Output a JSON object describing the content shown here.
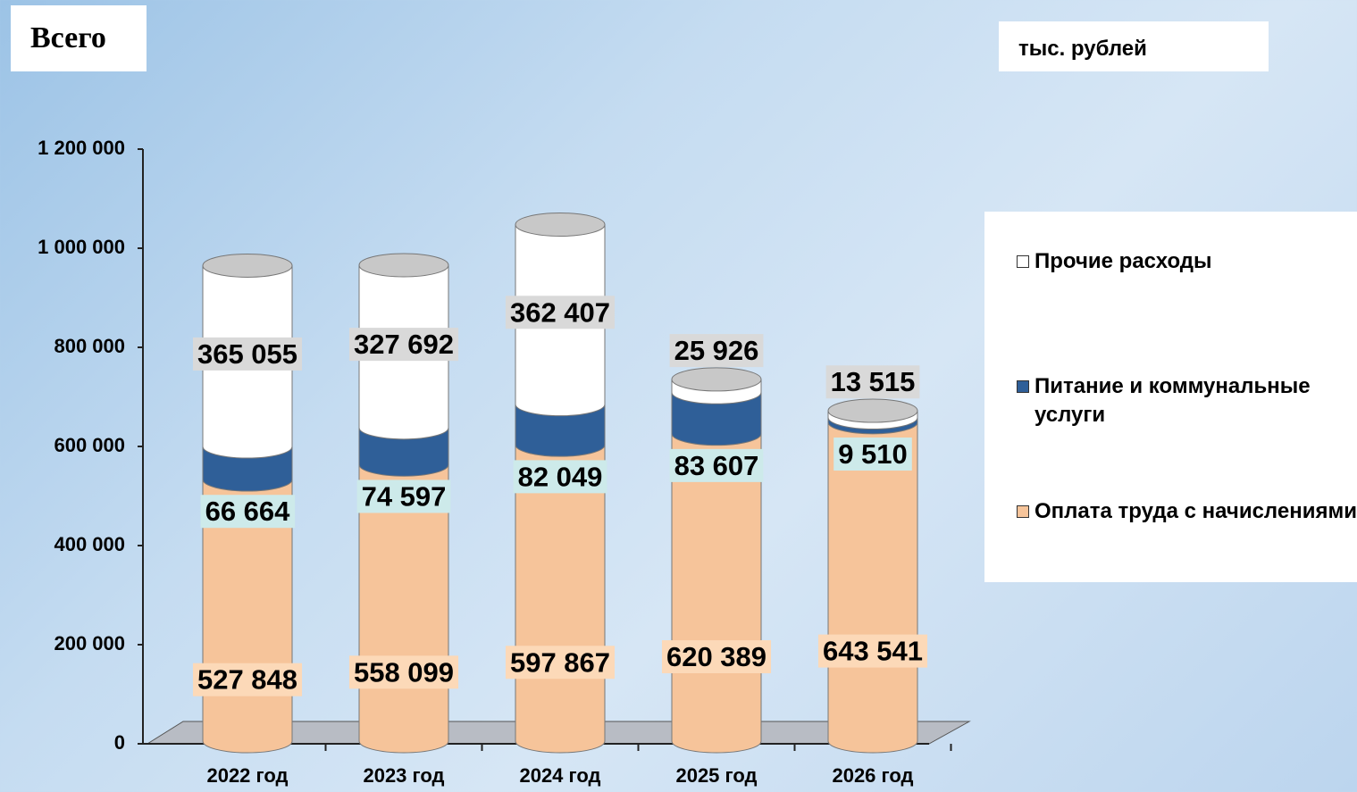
{
  "chart_data": {
    "type": "stacked-cylinder",
    "title": "Всего",
    "unit": "тыс. рублей",
    "categories": [
      "2022 год",
      "2023 год",
      "2024 год",
      "2025 год",
      "2026 год"
    ],
    "series": [
      {
        "name": "Оплата труда с начислениями",
        "color": "#f6c49a",
        "label_bg": "#fcd9b8",
        "values": [
          527848,
          558099,
          597867,
          620389,
          643541
        ],
        "value_labels": [
          "527 848",
          "558 099",
          "597 867",
          "620 389",
          "643 541"
        ]
      },
      {
        "name": "Питание и коммунальные услуги",
        "color": "#2f5f98",
        "label_bg": "#cdeaea",
        "values": [
          66664,
          74597,
          82049,
          83607,
          9510
        ],
        "value_labels": [
          "66 664",
          "74 597",
          "82 049",
          "83 607",
          "9 510"
        ]
      },
      {
        "name": "Прочие расходы",
        "color": "#ffffff",
        "label_bg": "#d9d9d9",
        "values": [
          365055,
          327692,
          362407,
          25926,
          13515
        ],
        "value_labels": [
          "365 055",
          "327 692",
          "362 407",
          "25 926",
          "13 515"
        ]
      }
    ],
    "ylim": [
      0,
      1200000
    ],
    "yticks": [
      0,
      {
        "value": 200000,
        "label": "200 000"
      },
      {
        "value": 400000,
        "label": "400 000"
      },
      {
        "value": 600000,
        "label": "600 000"
      },
      {
        "value": 800000,
        "label": "800 000"
      },
      {
        "value": 1000000,
        "label": "1 000 000"
      },
      {
        "value": 1200000,
        "label": "1 200 000"
      }
    ]
  }
}
